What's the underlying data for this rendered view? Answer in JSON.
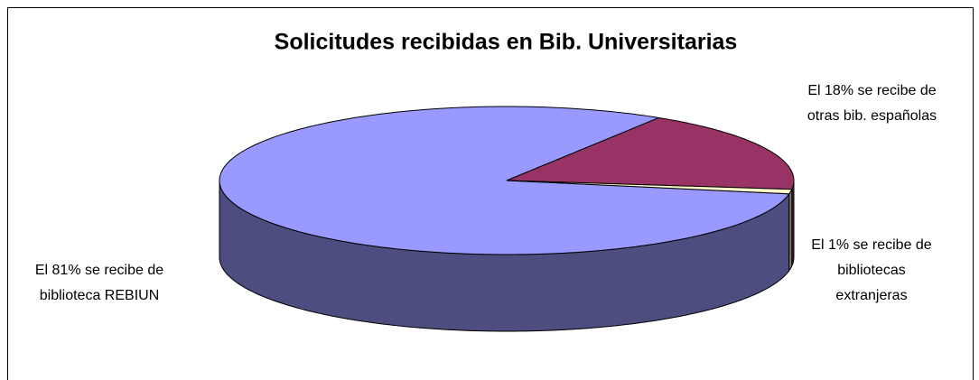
{
  "chart_data": {
    "type": "pie",
    "title": "Solicitudes recibidas en Bib. Universitarias",
    "values": [
      81,
      18,
      1
    ],
    "value_labels": [
      "El 81% se recibe de biblioteca REBIUN",
      "El 18% se recibe de otras bib. españolas",
      "El 1% se recibe de bibliotecas extranjeras"
    ],
    "colors": [
      "#9999ff",
      "#993366",
      "#ffffcc"
    ],
    "side_colors": [
      "#4d4d80",
      "#4d1a33",
      "#80806a"
    ]
  }
}
